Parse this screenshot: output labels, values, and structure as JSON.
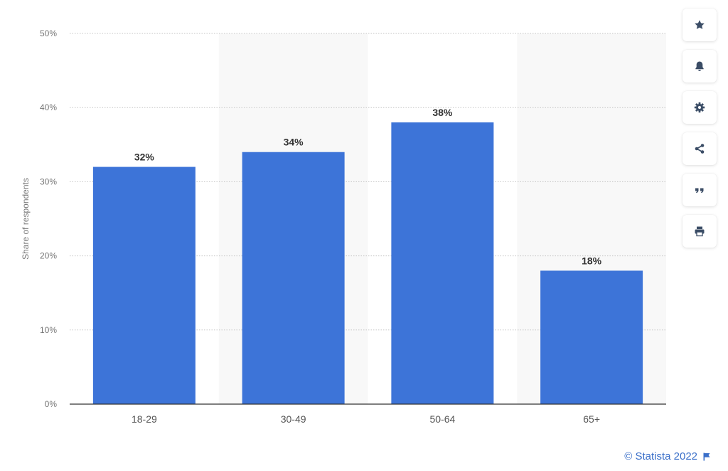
{
  "chart_data": {
    "type": "bar",
    "categories": [
      "18-29",
      "30-49",
      "50-64",
      "65+"
    ],
    "values": [
      32,
      34,
      38,
      18
    ],
    "data_labels": [
      "32%",
      "34%",
      "38%",
      "18%"
    ],
    "title": "",
    "xlabel": "",
    "ylabel": "Share of respondents",
    "ylim": [
      0,
      50
    ],
    "yticks": [
      "0%",
      "10%",
      "20%",
      "30%",
      "40%",
      "50%"
    ],
    "grid": true,
    "bar_color": "#3d74d8"
  },
  "toolbar": {
    "items": [
      {
        "name": "favorite-button",
        "icon": "star-icon"
      },
      {
        "name": "notification-button",
        "icon": "bell-icon"
      },
      {
        "name": "settings-button",
        "icon": "gear-icon"
      },
      {
        "name": "share-button",
        "icon": "share-icon"
      },
      {
        "name": "cite-button",
        "icon": "quote-icon"
      },
      {
        "name": "print-button",
        "icon": "printer-icon"
      }
    ]
  },
  "credit": {
    "text": "© Statista 2022",
    "icon": "flag-icon"
  },
  "colors": {
    "accent": "#3a6fc9",
    "icon": "#3b4d66"
  }
}
